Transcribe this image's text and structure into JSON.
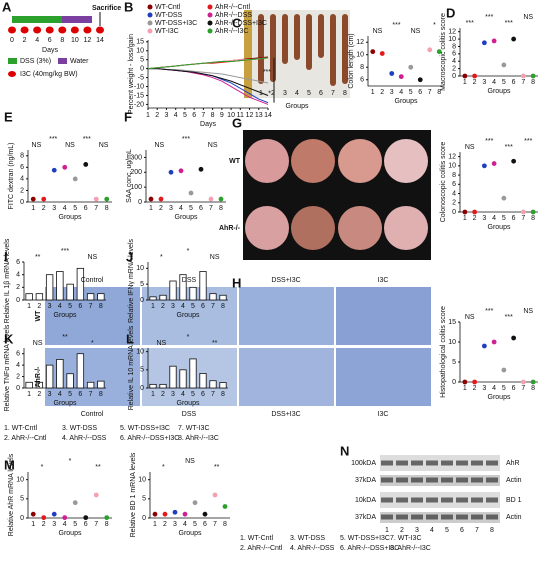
{
  "timeline": {
    "sacrifice": "Sacrifice",
    "days": [
      0,
      2,
      4,
      6,
      8,
      10,
      12,
      14
    ],
    "days_label": "Days",
    "dss": "DSS (3%)",
    "water": "Water",
    "i3c": "I3C (40mg/kg BW)"
  },
  "panel_labels": [
    "A",
    "B",
    "C",
    "D",
    "E",
    "F",
    "G",
    "H",
    "I",
    "J",
    "K",
    "L",
    "M",
    "N"
  ],
  "group_colors": [
    "#8b0000",
    "#e31a1c",
    "#1f3fbf",
    "#d02090",
    "#999999",
    "#111111",
    "#f4a0b0",
    "#2ca02c"
  ],
  "weight": {
    "type": "line",
    "ylabel": "Percent weight - loss/gain",
    "xlabel": "Days",
    "x": [
      1,
      2,
      3,
      4,
      5,
      6,
      7,
      8,
      9,
      10,
      11,
      12,
      13,
      14
    ],
    "xlim": [
      1,
      14
    ],
    "xticks": [
      1,
      2,
      3,
      4,
      5,
      6,
      7,
      8,
      9,
      10,
      11,
      12,
      13,
      14
    ],
    "ylim": [
      -22,
      16
    ],
    "yticks": [
      -20,
      -15,
      -10,
      -5,
      0,
      5,
      10,
      15
    ],
    "annotations": [
      "***",
      "*"
    ],
    "series": [
      {
        "name": "WT-Cntl",
        "color": "#8b0000",
        "values": [
          0,
          0.5,
          1,
          1.5,
          2,
          2.5,
          3,
          3.5,
          4,
          4.5,
          5,
          5.5,
          6,
          6.5
        ]
      },
      {
        "name": "AhR-/--Cntl",
        "color": "#e31a1c",
        "values": [
          0,
          0.5,
          1,
          1.5,
          2,
          2.5,
          3,
          3,
          3.5,
          4,
          4.5,
          5,
          5.5,
          6
        ]
      },
      {
        "name": "WT-DSS",
        "color": "#1f3fbf",
        "values": [
          0,
          0,
          -0.5,
          -1,
          -1.5,
          -2,
          -3,
          -4,
          -6,
          -8,
          -11,
          -14,
          -17,
          -19
        ]
      },
      {
        "name": "AhR-/--DSS",
        "color": "#d02090",
        "values": [
          0,
          0,
          -0.5,
          -1,
          -1.5,
          -2.5,
          -3.5,
          -5,
          -7,
          -10,
          -13,
          -16,
          -18,
          -20
        ]
      },
      {
        "name": "WT-DSS+I3C",
        "color": "#999999",
        "values": [
          0,
          0,
          -0.5,
          -0.5,
          -1,
          -1.5,
          -2,
          -2.5,
          -3,
          -4,
          -5,
          -6,
          -7,
          -8
        ]
      },
      {
        "name": "AhR-/--DSS+I3C",
        "color": "#111111",
        "values": [
          0,
          0,
          -0.5,
          -1,
          -1.5,
          -2,
          -3,
          -4,
          -5.5,
          -7,
          -9,
          -11,
          -13,
          -15
        ]
      },
      {
        "name": "WT-I3C",
        "color": "#f4a0b0",
        "values": [
          0,
          0.5,
          1,
          1.5,
          2,
          2.5,
          3,
          3.5,
          4,
          4.5,
          5,
          5,
          5.5,
          6
        ]
      },
      {
        "name": "AhR-/--I3C",
        "color": "#2ca02c",
        "values": [
          0,
          0.5,
          1,
          1.5,
          2,
          2.5,
          3,
          3.5,
          4,
          4,
          4.5,
          5,
          5.5,
          6
        ]
      }
    ]
  },
  "colon_photo": {
    "lanes": [
      "1",
      "2",
      "3",
      "4",
      "5",
      "6",
      "7",
      "8"
    ],
    "xlabel": "Groups"
  },
  "plots": [
    {
      "type": "scatter",
      "ylabel": "Colon length (cm)",
      "xlabel": "Groups",
      "categories": [
        "1",
        "2",
        "3",
        "4",
        "5",
        "6",
        "7",
        "8"
      ],
      "values": [
        10.5,
        10.2,
        7,
        6.5,
        8,
        6,
        10.8,
        10.5
      ],
      "ylim": [
        5,
        13
      ],
      "yticks": [
        6,
        8,
        10,
        12
      ],
      "annotations": [
        "NS",
        "***",
        "NS",
        "*"
      ]
    },
    {
      "type": "scatter",
      "ylabel": "Macroscopic colitis score",
      "xlabel": "Groups",
      "categories": [
        "1",
        "2",
        "3",
        "4",
        "5",
        "6",
        "7",
        "8"
      ],
      "values": [
        0,
        0,
        9,
        9.5,
        3,
        10,
        0,
        0
      ],
      "ylim": [
        0,
        13
      ],
      "yticks": [
        0,
        2,
        4,
        6,
        8,
        10,
        12
      ],
      "annotations": [
        "***",
        "***",
        "***",
        "NS"
      ]
    },
    {
      "type": "scatter",
      "ylabel": "FITC dextran (ng/mL)",
      "xlabel": "Groups",
      "categories": [
        "1",
        "2",
        "3",
        "4",
        "5",
        "6",
        "7",
        "8"
      ],
      "values": [
        0.5,
        0.5,
        5.5,
        6,
        4,
        6.5,
        0.5,
        0.5
      ],
      "ylim": [
        0,
        9
      ],
      "yticks": [
        0,
        2,
        4,
        6,
        8
      ],
      "annotations": [
        "NS",
        "***",
        "NS",
        "***",
        "NS"
      ]
    },
    {
      "type": "scatter",
      "ylabel": "SAA conc. ug/mL",
      "xlabel": "Groups",
      "categories": [
        "1",
        "2",
        "3",
        "4",
        "5",
        "6",
        "7",
        "8"
      ],
      "values": [
        20,
        20,
        200,
        210,
        60,
        220,
        20,
        20
      ],
      "ylim": [
        0,
        350
      ],
      "yticks": [
        0,
        100,
        200,
        300
      ],
      "annotations": [
        "NS",
        "***",
        "NS"
      ]
    },
    {
      "type": "scatter",
      "ylabel": "Colonoscopic colitis score",
      "xlabel": "Groups",
      "categories": [
        "1",
        "2",
        "3",
        "4",
        "5",
        "6",
        "7",
        "8"
      ],
      "values": [
        0,
        0,
        10,
        10.5,
        3,
        11,
        0,
        0
      ],
      "ylim": [
        0,
        13
      ],
      "yticks": [
        0,
        2,
        4,
        6,
        8,
        10,
        12
      ],
      "annotations": [
        "NS",
        "***",
        "***",
        "***"
      ]
    },
    {
      "type": "scatter",
      "ylabel": "Histopathological colitis score",
      "xlabel": "Groups",
      "categories": [
        "1",
        "2",
        "3",
        "4",
        "5",
        "6",
        "7",
        "8"
      ],
      "values": [
        0,
        0,
        9,
        10,
        3,
        11,
        0,
        0
      ],
      "ylim": [
        0,
        15
      ],
      "yticks": [
        0,
        5,
        10,
        15
      ],
      "annotations": [
        "NS",
        "***",
        "***",
        "NS"
      ]
    },
    {
      "type": "bar",
      "ylabel": "Relative IL 1β mRNA levels",
      "xlabel": "Groups",
      "categories": [
        "1",
        "2",
        "3",
        "4",
        "5",
        "6",
        "7",
        "8"
      ],
      "values": [
        1,
        1,
        4,
        4.5,
        2.5,
        5,
        1,
        1
      ],
      "ylim": [
        0,
        6
      ],
      "yticks": [
        0,
        2,
        4,
        6
      ],
      "annotations": [
        "**",
        "***",
        "NS"
      ]
    },
    {
      "type": "bar",
      "ylabel": "Relative IFNγ mRNA levels",
      "xlabel": "Groups",
      "categories": [
        "1",
        "2",
        "3",
        "4",
        "5",
        "6",
        "7",
        "8"
      ],
      "values": [
        1,
        1.5,
        6,
        8,
        4,
        9,
        2,
        1.5
      ],
      "ylim": [
        0,
        12
      ],
      "yticks": [
        0,
        5,
        10
      ],
      "annotations": [
        "*",
        "*",
        "NS"
      ]
    },
    {
      "type": "bar",
      "ylabel": "Relative TNFα mRNA levels",
      "xlabel": "Groups",
      "categories": [
        "1",
        "2",
        "3",
        "4",
        "5",
        "6",
        "7",
        "8"
      ],
      "values": [
        1,
        1,
        4,
        5,
        2.5,
        6,
        1,
        1.2
      ],
      "ylim": [
        0,
        7
      ],
      "yticks": [
        0,
        2,
        4,
        6
      ],
      "annotations": [
        "NS",
        "**",
        "*"
      ]
    },
    {
      "type": "bar",
      "ylabel": "Relative IL 10 mRNA levels",
      "xlabel": "Groups",
      "categories": [
        "1",
        "2",
        "3",
        "4",
        "5",
        "6",
        "7",
        "8"
      ],
      "values": [
        1,
        1,
        6,
        5,
        8,
        4,
        2,
        1.5
      ],
      "ylim": [
        0,
        11
      ],
      "yticks": [
        0,
        5,
        10
      ],
      "annotations": [
        "NS",
        "*",
        "**"
      ]
    },
    {
      "type": "scatter",
      "ylabel": "Relative AhR mRNA levels",
      "xlabel": "Groups",
      "categories": [
        "1",
        "2",
        "3",
        "4",
        "5",
        "6",
        "7",
        "8"
      ],
      "values": [
        1,
        0.1,
        1,
        0.1,
        4,
        0.1,
        6,
        0.1
      ],
      "ylim": [
        0,
        12
      ],
      "yticks": [
        0,
        5,
        10
      ],
      "annotations": [
        "*",
        "*",
        "**"
      ]
    },
    {
      "type": "scatter",
      "ylabel": "Relative BD 1 mRNA levels",
      "xlabel": "Groups",
      "categories": [
        "1",
        "2",
        "3",
        "4",
        "5",
        "6",
        "7",
        "8"
      ],
      "values": [
        1,
        1,
        1.5,
        1,
        4,
        1,
        6,
        3
      ],
      "ylim": [
        0,
        12
      ],
      "yticks": [
        0,
        5,
        10
      ],
      "annotations": [
        "*",
        "NS",
        "**"
      ]
    }
  ],
  "endoscopy": {
    "rows": [
      "WT",
      "AhR-/-"
    ]
  },
  "histology": {
    "columns": [
      "Control",
      "DSS",
      "DSS+I3C",
      "I3C"
    ],
    "rows": [
      "WT",
      "AhR-/-"
    ]
  },
  "legend1": [
    "1. WT-Cntl",
    "2. AhR-/--Cntl",
    "3. WT-DSS",
    "4. AhR-/--DSS",
    "5. WT-DSS+I3C",
    "6. AhR-/--DSS+I3C",
    "7. WT-I3C",
    "8. AhR-/--I3C"
  ],
  "legend2": [
    "1. WT-Cntl",
    "2. AhR-/--Cntl",
    "3. WT-DSS",
    "4. AhR-/--DSS",
    "5. WT-DSS+I3C",
    "6. AhR-/--DSS+I3C",
    "7. WT-I3C",
    "8. AhR-/--I3C"
  ],
  "blot": {
    "sizes": [
      "100kDA",
      "37kDA",
      "10kDA",
      "37kDA"
    ],
    "bands": [
      "AhR",
      "Actin",
      "BD 1",
      "Actin"
    ],
    "lanes": [
      "1",
      "2",
      "3",
      "4",
      "5",
      "6",
      "7",
      "8"
    ]
  }
}
